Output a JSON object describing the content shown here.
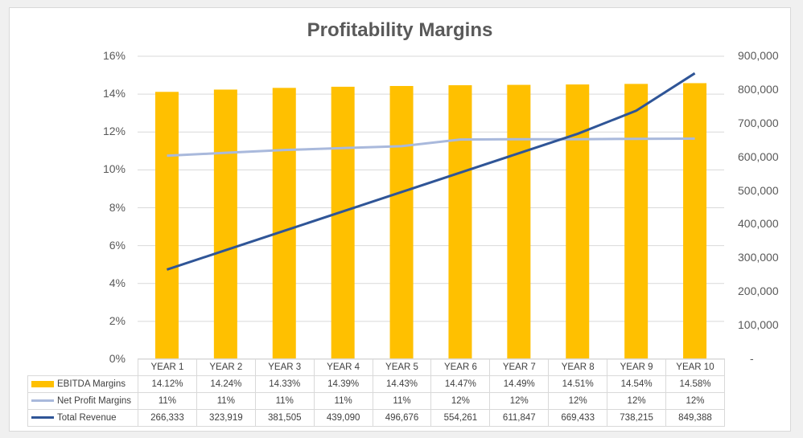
{
  "chart_data": {
    "type": "bar",
    "title": "Profitability Margins",
    "categories": [
      "YEAR 1",
      "YEAR 2",
      "YEAR 3",
      "YEAR 4",
      "YEAR 5",
      "YEAR 6",
      "YEAR 7",
      "YEAR 8",
      "YEAR 9",
      "YEAR 10"
    ],
    "series": [
      {
        "name": "EBITDA Margins",
        "type": "bar",
        "axis": "left",
        "color": "#ffc000",
        "values": [
          14.12,
          14.24,
          14.33,
          14.39,
          14.43,
          14.47,
          14.49,
          14.51,
          14.54,
          14.58
        ],
        "labels": [
          "14.12%",
          "14.24%",
          "14.33%",
          "14.39%",
          "14.43%",
          "14.47%",
          "14.49%",
          "14.51%",
          "14.54%",
          "14.58%"
        ]
      },
      {
        "name": "Net Profit Margins",
        "type": "line",
        "axis": "left",
        "color": "#a9b9dc",
        "values": [
          10.75,
          10.9,
          11.05,
          11.15,
          11.25,
          11.6,
          11.62,
          11.62,
          11.64,
          11.65
        ],
        "labels": [
          "11%",
          "11%",
          "11%",
          "11%",
          "11%",
          "12%",
          "12%",
          "12%",
          "12%",
          "12%"
        ]
      },
      {
        "name": "Total Revenue",
        "type": "line",
        "axis": "right",
        "color": "#2f5597",
        "values": [
          266333,
          323919,
          381505,
          439090,
          496676,
          554261,
          611847,
          669433,
          738215,
          849388
        ],
        "labels": [
          "266,333",
          "323,919",
          "381,505",
          "439,090",
          "496,676",
          "554,261",
          "611,847",
          "669,433",
          "738,215",
          "849,388"
        ]
      }
    ],
    "left_axis": {
      "ylim": [
        0,
        16
      ],
      "ticks": [
        "0%",
        "2%",
        "4%",
        "6%",
        "8%",
        "10%",
        "12%",
        "14%",
        "16%"
      ]
    },
    "right_axis": {
      "ylim": [
        0,
        900000
      ],
      "ticks": [
        "-",
        "100,000",
        "200,000",
        "300,000",
        "400,000",
        "500,000",
        "600,000",
        "700,000",
        "800,000",
        "900,000"
      ]
    },
    "xlabel": "",
    "ylabel": "",
    "grid": true,
    "legend_position": "data-table"
  }
}
